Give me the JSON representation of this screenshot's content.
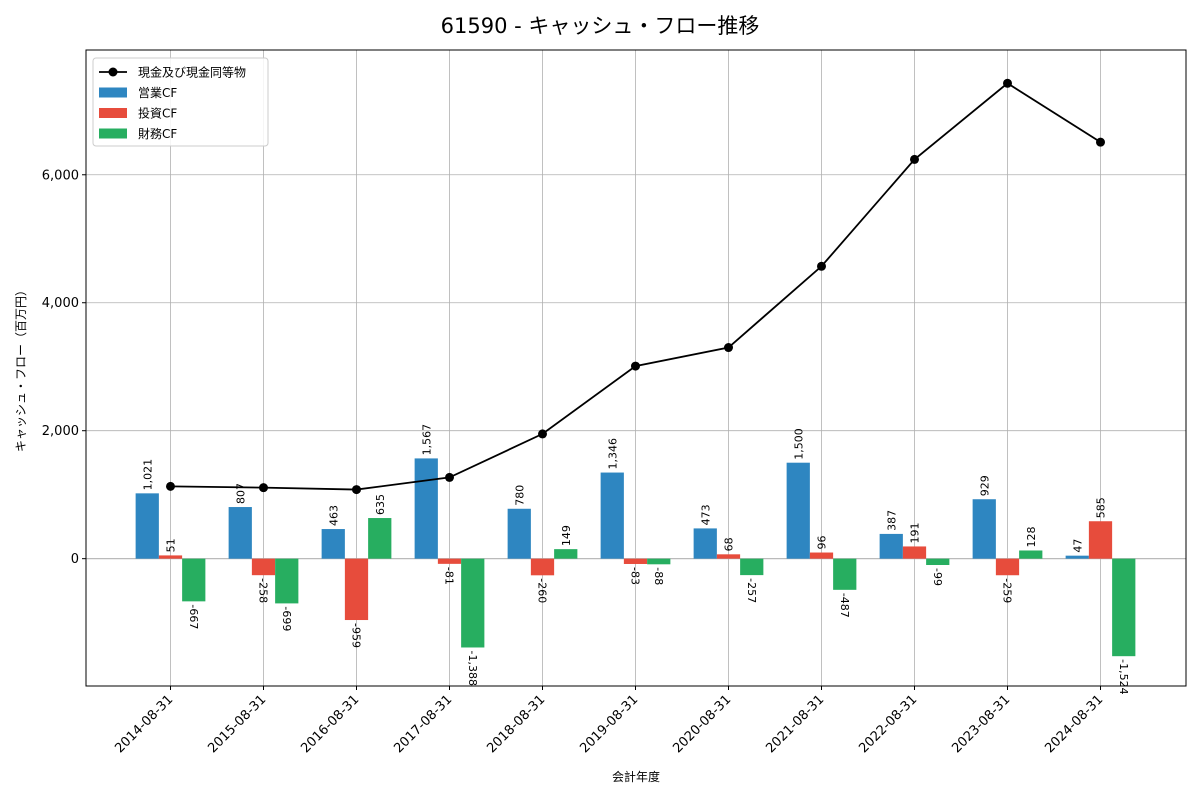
{
  "chart_data": {
    "type": "bar",
    "title": "61590 - キャッシュ・フロー推移",
    "xlabel": "会計年度",
    "ylabel": "キャッシュ・フロー（百万円）",
    "categories": [
      "2014-08-31",
      "2015-08-31",
      "2016-08-31",
      "2017-08-31",
      "2018-08-31",
      "2019-08-31",
      "2020-08-31",
      "2021-08-31",
      "2022-08-31",
      "2023-08-31",
      "2024-08-31"
    ],
    "ylim": [
      -1990,
      7950
    ],
    "yticks": [
      0,
      2000,
      4000,
      6000
    ],
    "ytick_labels": [
      "0",
      "2,000",
      "4,000",
      "6,000"
    ],
    "grid": true,
    "legend_position": "top-left",
    "series": [
      {
        "name": "営業CF",
        "type": "bar",
        "color": "#2e86c1",
        "values": [
          1021,
          807,
          463,
          1567,
          780,
          1346,
          473,
          1500,
          387,
          929,
          47
        ],
        "labels": [
          "1,021",
          "807",
          "463",
          "1,567",
          "780",
          "1,346",
          "473",
          "1,500",
          "387",
          "929",
          "47"
        ]
      },
      {
        "name": "投資CF",
        "type": "bar",
        "color": "#e74c3c",
        "values": [
          51,
          -258,
          -959,
          -81,
          -260,
          -83,
          68,
          96,
          191,
          -259,
          585
        ],
        "labels": [
          "51",
          "-258",
          "-959",
          "-81",
          "-260",
          "-83",
          "68",
          "96",
          "191",
          "-259",
          "585"
        ]
      },
      {
        "name": "財務CF",
        "type": "bar",
        "color": "#27ae60",
        "values": [
          -667,
          -699,
          635,
          -1388,
          149,
          -88,
          -257,
          -487,
          -99,
          128,
          -1524
        ],
        "labels": [
          "-667",
          "-699",
          "635",
          "-1,388",
          "149",
          "-88",
          "-257",
          "-487",
          "-99",
          "128",
          "-1,524"
        ]
      },
      {
        "name": "現金及び現金同等物",
        "type": "line",
        "color": "#000000",
        "values": [
          1130,
          1110,
          1080,
          1270,
          1950,
          3010,
          3300,
          4570,
          6240,
          7430,
          6510
        ]
      }
    ]
  }
}
